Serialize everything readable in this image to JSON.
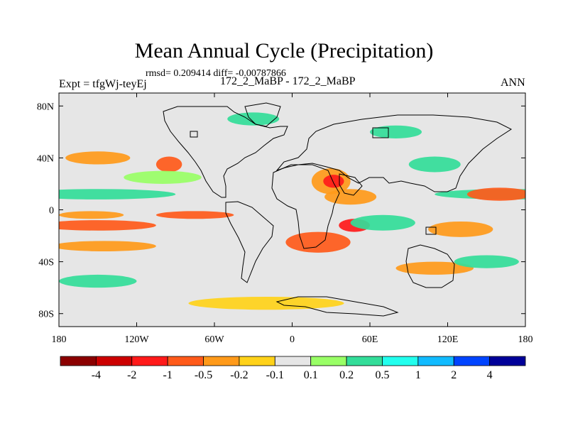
{
  "title": "Mean Annual Cycle (Precipitation)",
  "stats_line": "rmsd= 0.209414 diff= -0.00787866",
  "experiment_label": "Expt = tfgWj-teyEj",
  "case_label": "172_2_MaBP - 172_2_MaBP",
  "season_label": "ANN",
  "chart_data": {
    "type": "heatmap",
    "title": "Mean Annual Cycle (Precipitation)",
    "subtitle": "rmsd= 0.209414 diff= -0.00787866",
    "xlabel": "",
    "ylabel": "",
    "xlim": [
      -180,
      180
    ],
    "ylim": [
      -90,
      90
    ],
    "x_ticks": [
      {
        "value": -180,
        "label": "180"
      },
      {
        "value": -120,
        "label": "120W"
      },
      {
        "value": -60,
        "label": "60W"
      },
      {
        "value": 0,
        "label": "0"
      },
      {
        "value": 60,
        "label": "60E"
      },
      {
        "value": 120,
        "label": "120E"
      },
      {
        "value": 180,
        "label": "180"
      }
    ],
    "y_ticks": [
      {
        "value": 80,
        "label": "80N"
      },
      {
        "value": 40,
        "label": "40N"
      },
      {
        "value": 0,
        "label": "0"
      },
      {
        "value": -40,
        "label": "40S"
      },
      {
        "value": -80,
        "label": "80S"
      }
    ],
    "colorbar": {
      "labels": [
        "-4",
        "-2",
        "-1",
        "-0.5",
        "-0.2",
        "-0.1",
        "0.1",
        "0.2",
        "0.5",
        "1",
        "2",
        "4"
      ],
      "colors": [
        "#8b0000",
        "#cc0000",
        "#ff1a1a",
        "#ff5a1a",
        "#ff9a1a",
        "#ffd21a",
        "#e6e6e6",
        "#99ff66",
        "#33dd99",
        "#22ffee",
        "#11bbff",
        "#0044ff",
        "#000099"
      ]
    },
    "anomaly_regions": [
      {
        "lon": 170,
        "lat": 12,
        "rlon": 60,
        "rlat": 4,
        "level": 8
      },
      {
        "lon": -150,
        "lat": 12,
        "rlon": 60,
        "rlat": 4,
        "level": 8
      },
      {
        "lon": -150,
        "lat": -12,
        "rlon": 45,
        "rlat": 4,
        "level": 3
      },
      {
        "lon": -75,
        "lat": -4,
        "rlon": 30,
        "rlat": 3,
        "level": 3
      },
      {
        "lon": -155,
        "lat": -4,
        "rlon": 25,
        "rlat": 3,
        "level": 4
      },
      {
        "lon": -145,
        "lat": -28,
        "rlon": 40,
        "rlat": 4,
        "level": 4
      },
      {
        "lon": -95,
        "lat": 35,
        "rlon": 10,
        "rlat": 6,
        "level": 3
      },
      {
        "lon": -150,
        "lat": 40,
        "rlon": 25,
        "rlat": 5,
        "level": 4
      },
      {
        "lon": -100,
        "lat": 25,
        "rlon": 30,
        "rlat": 5,
        "level": 7
      },
      {
        "lon": -30,
        "lat": 70,
        "rlon": 20,
        "rlat": 5,
        "level": 8
      },
      {
        "lon": 30,
        "lat": 22,
        "rlon": 15,
        "rlat": 10,
        "level": 4
      },
      {
        "lon": 32,
        "lat": 22,
        "rlon": 8,
        "rlat": 5,
        "level": 2
      },
      {
        "lon": 45,
        "lat": 10,
        "rlon": 20,
        "rlat": 6,
        "level": 4
      },
      {
        "lon": 48,
        "lat": -12,
        "rlon": 12,
        "rlat": 5,
        "level": 2
      },
      {
        "lon": 20,
        "lat": -25,
        "rlon": 25,
        "rlat": 8,
        "level": 3
      },
      {
        "lon": 70,
        "lat": -10,
        "rlon": 25,
        "rlat": 6,
        "level": 8
      },
      {
        "lon": 130,
        "lat": -15,
        "rlon": 25,
        "rlat": 6,
        "level": 4
      },
      {
        "lon": 160,
        "lat": 12,
        "rlon": 25,
        "rlat": 5,
        "level": 3
      },
      {
        "lon": 110,
        "lat": 35,
        "rlon": 20,
        "rlat": 6,
        "level": 8
      },
      {
        "lon": 80,
        "lat": 60,
        "rlon": 20,
        "rlat": 5,
        "level": 8
      },
      {
        "lon": -20,
        "lat": -72,
        "rlon": 60,
        "rlat": 5,
        "level": 5
      },
      {
        "lon": -150,
        "lat": -55,
        "rlon": 30,
        "rlat": 5,
        "level": 8
      },
      {
        "lon": 110,
        "lat": -45,
        "rlon": 30,
        "rlat": 5,
        "level": 4
      },
      {
        "lon": 150,
        "lat": -40,
        "rlon": 25,
        "rlat": 5,
        "level": 8
      }
    ]
  }
}
